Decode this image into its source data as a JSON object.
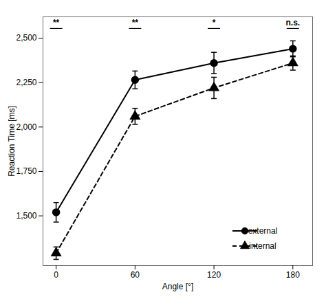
{
  "chart_data": {
    "type": "line",
    "xlabel": "Angle [°]",
    "ylabel": "Reaction Time [ms]",
    "x": [
      0,
      60,
      120,
      180
    ],
    "series": [
      {
        "name": "external",
        "color": "#000000",
        "marker": "circle",
        "line_style": "solid",
        "values": [
          1520,
          2265,
          2360,
          2440
        ],
        "error": [
          55,
          50,
          60,
          45
        ]
      },
      {
        "name": "internal",
        "color": "#000000",
        "marker": "triangle",
        "line_style": "dashed",
        "values": [
          1290,
          2060,
          2220,
          2360
        ],
        "error": [
          35,
          45,
          60,
          40
        ]
      }
    ],
    "xlim": [
      -10,
      195
    ],
    "ylim": [
      1220,
      2620
    ],
    "xticks": [
      0,
      60,
      120,
      180
    ],
    "yticks": [
      1500,
      1750,
      2000,
      2250,
      2500
    ],
    "annotations": [
      {
        "x": 0,
        "y": 2570,
        "text": "**"
      },
      {
        "x": 60,
        "y": 2570,
        "text": "**"
      },
      {
        "x": 120,
        "y": 2570,
        "text": "*"
      },
      {
        "x": 180,
        "y": 2570,
        "text": "n.s."
      }
    ],
    "legend": "lower right",
    "grid": false
  }
}
